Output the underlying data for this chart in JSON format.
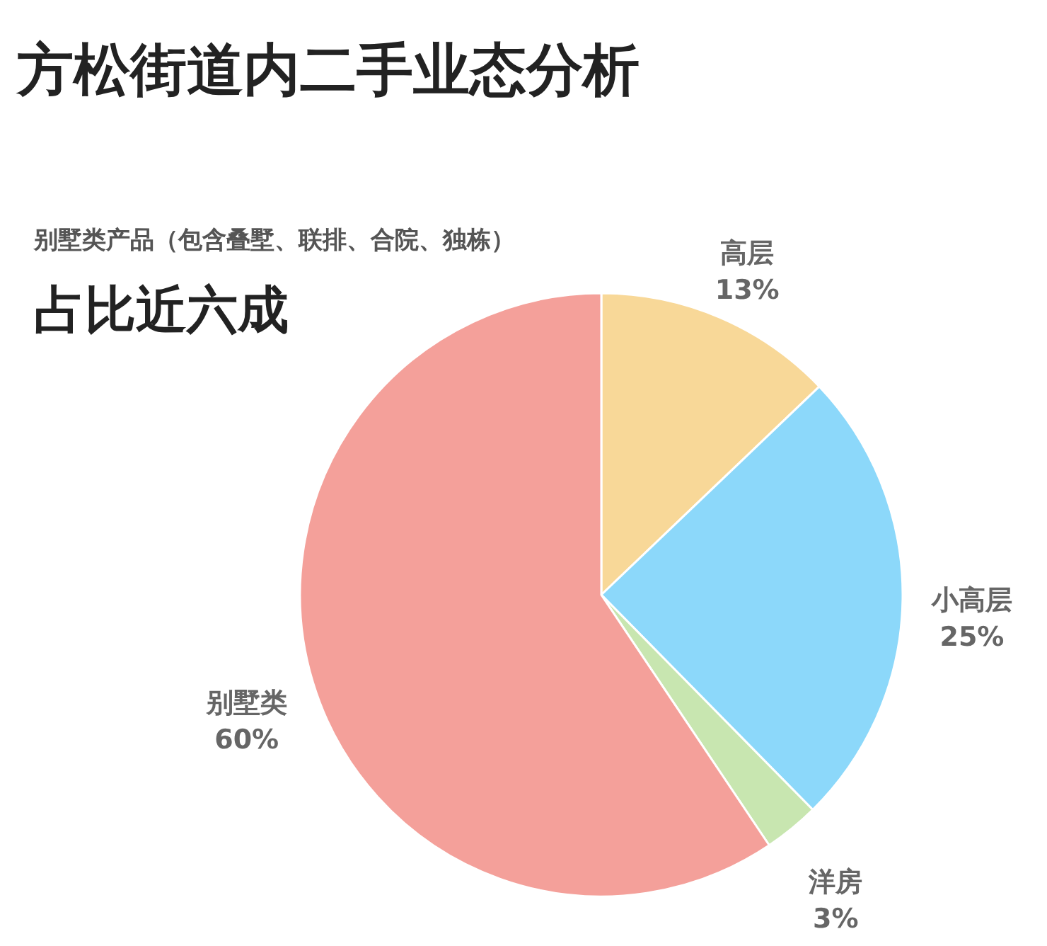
{
  "chart_data": {
    "type": "pie",
    "title": "方松街道内二手业态分析",
    "annotations": [
      "别墅类产品（包含叠墅、联排、合院、独栋）",
      "占比近六成"
    ],
    "categories": [
      "高层",
      "小高层",
      "洋房",
      "别墅类"
    ],
    "values": [
      13,
      25,
      3,
      60
    ],
    "value_labels": [
      "13%",
      "25%",
      "3%",
      "60%"
    ],
    "colors": [
      "#f8d898",
      "#8cd8fa",
      "#c8e6b0",
      "#f4a09a"
    ],
    "legend": false
  }
}
